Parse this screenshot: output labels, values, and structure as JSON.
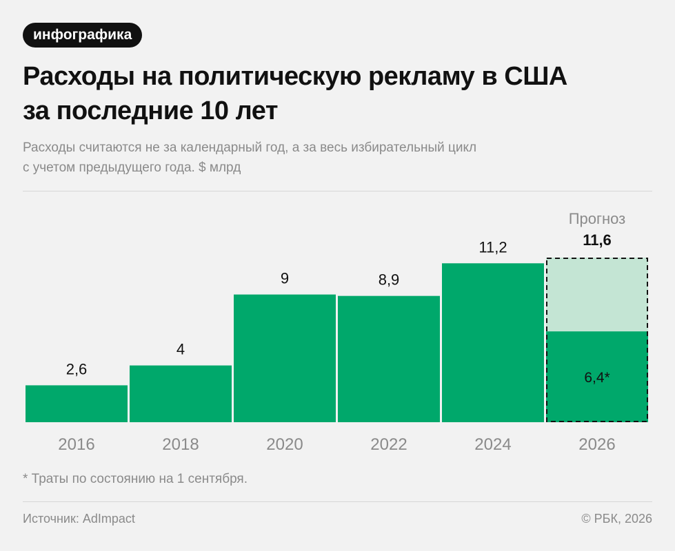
{
  "header": {
    "tag": "инфографика",
    "title_line1": "Расходы на политическую рекламу в США",
    "title_line2": "за последние 10 лет",
    "subtitle_line1": "Расходы считаются не за календарный год, а за весь избирательный цикл",
    "subtitle_line2": "с учетом предыдущего года. $ млрд"
  },
  "chart_data": {
    "type": "bar",
    "categories": [
      "2016",
      "2018",
      "2020",
      "2022",
      "2024",
      "2026"
    ],
    "values": [
      2.6,
      4,
      9,
      8.9,
      11.2,
      11.6
    ],
    "value_labels": [
      "2,6",
      "4",
      "9",
      "8,9",
      "11,2",
      "11,6"
    ],
    "partial": {
      "category": "2026",
      "value": 6.4,
      "label": "6,4*"
    },
    "forecast": {
      "category": "2026",
      "label": "Прогноз"
    },
    "title": "Расходы на политическую рекламу в США за последние 10 лет",
    "xlabel": "",
    "ylabel": "",
    "ylim": [
      0,
      12
    ],
    "grid": false,
    "colors": {
      "bar": "#00a86b",
      "forecast_fill": "#c4e5d4",
      "forecast_border": "#111111",
      "axis_label": "#8a8a8a",
      "value_label": "#111111"
    }
  },
  "footer": {
    "footnote": "* Траты по состоянию на 1 сентября.",
    "source": "Источник: AdImpact",
    "copyright": "© РБК, 2026"
  }
}
